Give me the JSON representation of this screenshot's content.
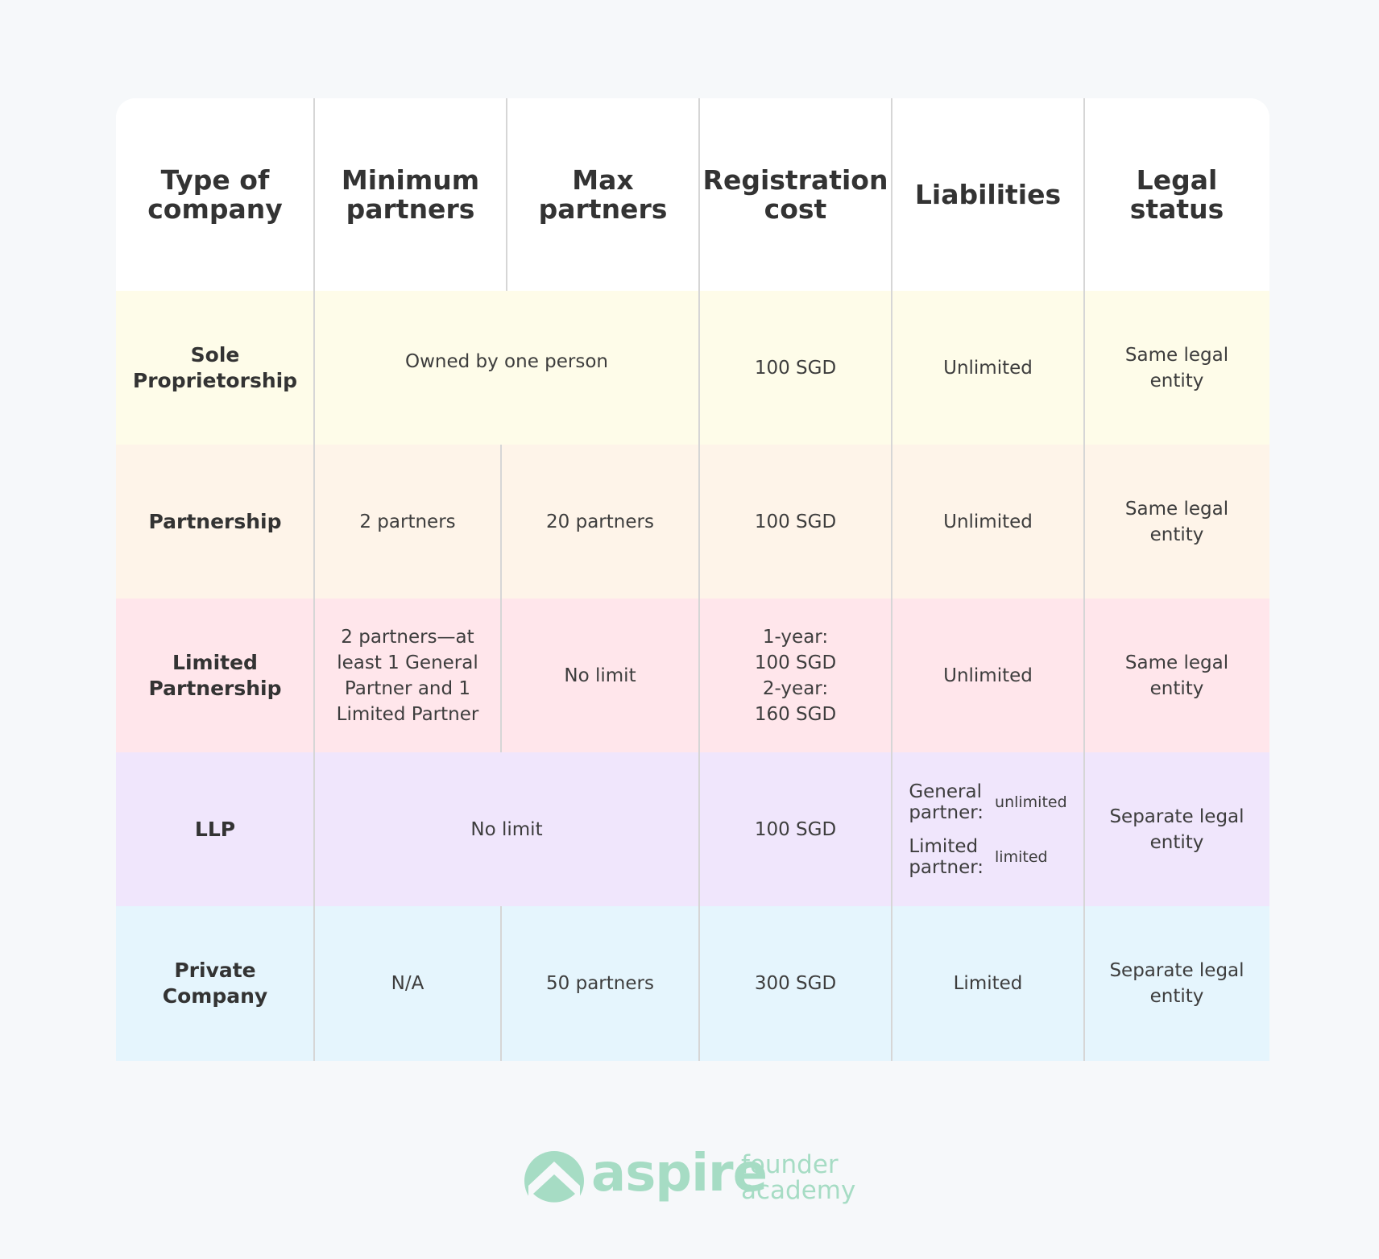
{
  "colors": {
    "sole": "#fefce9",
    "partnership": "#fef4e9",
    "limited_partnership": "#ffe6eb",
    "llp": "#f0e6fc",
    "private_company": "#e5f5fd",
    "brand": "#a6dcc4"
  },
  "header": {
    "type": "Type of\ncompany",
    "min": "Minimum\npartners",
    "max": "Max\npartners",
    "cost": "Registration\ncost",
    "liab": "Liabilities",
    "status": "Legal\nstatus"
  },
  "rows": {
    "sole": {
      "type": "Sole\nProprietorship",
      "partners": "Owned by one person",
      "cost": "100 SGD",
      "liab": "Unlimited",
      "status": "Same legal\nentity"
    },
    "partnership": {
      "type": "Partnership",
      "min": "2 partners",
      "max": "20 partners",
      "cost": "100 SGD",
      "liab": "Unlimited",
      "status": "Same legal\nentity"
    },
    "limited_partnership": {
      "type": "Limited\nPartnership",
      "min": "2 partners—at\nleast 1 General\nPartner and 1\nLimited Partner",
      "max": "No limit",
      "cost": "1-year:\n100 SGD\n2-year:\n160 SGD",
      "liab": "Unlimited",
      "status": "Same legal\nentity"
    },
    "llp": {
      "type": "LLP",
      "partners": "No limit",
      "cost": "100 SGD",
      "liab_general_label": "General\npartner:",
      "liab_general_value": "unlimited",
      "liab_limited_label": "Limited\npartner:",
      "liab_limited_value": "limited",
      "status": "Separate legal\nentity"
    },
    "private_company": {
      "type": "Private\nCompany",
      "min": "N/A",
      "max": "50 partners",
      "cost": "300 SGD",
      "liab": "Limited",
      "status": "Separate legal\nentity"
    }
  },
  "logo": {
    "word": "aspire",
    "sub": "founder\nacademy"
  }
}
